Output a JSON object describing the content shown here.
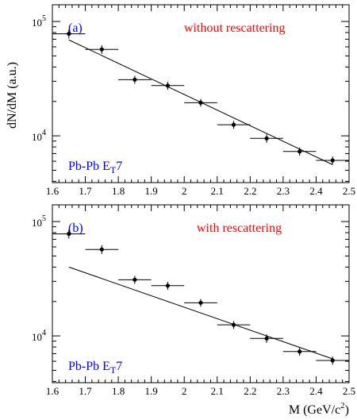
{
  "chart_data": [
    {
      "type": "scatter",
      "panel_label": "(a)",
      "annotation": "without rescattering",
      "system_label_main": "Pb-Pb E",
      "system_label_sub": "T",
      "system_label_tail": "7",
      "ylabel": "dN/dM (a.u.)",
      "xlabel": "",
      "xlim": [
        1.6,
        2.5
      ],
      "ylim": [
        3900,
        140000
      ],
      "yscale": "log",
      "x_ticks": [
        "1.6",
        "1.7",
        "1.8",
        "1.9",
        "2",
        "2.1",
        "2.2",
        "2.3",
        "2.4",
        "2.5"
      ],
      "y_tick_labels": [
        {
          "value": 10000,
          "base": "10",
          "exp": "4"
        },
        {
          "value": 100000,
          "base": "10",
          "exp": "5"
        }
      ],
      "points": [
        {
          "x": 1.65,
          "y": 78000,
          "xerr": 0.05,
          "yerr": 7000
        },
        {
          "x": 1.75,
          "y": 57000,
          "xerr": 0.05,
          "yerr": 5000
        },
        {
          "x": 1.85,
          "y": 31000,
          "xerr": 0.05,
          "yerr": 2500
        },
        {
          "x": 1.95,
          "y": 27500,
          "xerr": 0.05,
          "yerr": 2200
        },
        {
          "x": 2.05,
          "y": 19500,
          "xerr": 0.05,
          "yerr": 1500
        },
        {
          "x": 2.15,
          "y": 12500,
          "xerr": 0.05,
          "yerr": 1000
        },
        {
          "x": 2.25,
          "y": 9500,
          "xerr": 0.05,
          "yerr": 800
        },
        {
          "x": 2.35,
          "y": 7300,
          "xerr": 0.05,
          "yerr": 600
        },
        {
          "x": 2.45,
          "y": 6100,
          "xerr": 0.05,
          "yerr": 500
        }
      ],
      "fit": {
        "x": [
          1.65,
          2.45
        ],
        "y": [
          69000,
          5600
        ]
      },
      "colors": {
        "panel_label": "#0000ff",
        "annotation": "#ff0000",
        "system_label": "#0000ff",
        "data": "#000000"
      }
    },
    {
      "type": "scatter",
      "panel_label": "(b)",
      "annotation": "with rescattering",
      "system_label_main": "Pb-Pb E",
      "system_label_sub": "T",
      "system_label_tail": "7",
      "ylabel": "",
      "xlabel": "M (GeV/c",
      "xlabel_sup": "2",
      "xlabel_tail": ")",
      "xlim": [
        1.6,
        2.5
      ],
      "ylim": [
        3900,
        140000
      ],
      "yscale": "log",
      "x_ticks": [
        "1.6",
        "1.7",
        "1.8",
        "1.9",
        "2",
        "2.1",
        "2.2",
        "2.3",
        "2.4",
        "2.5"
      ],
      "y_tick_labels": [
        {
          "value": 10000,
          "base": "10",
          "exp": "4"
        },
        {
          "value": 100000,
          "base": "10",
          "exp": "5"
        }
      ],
      "points": [
        {
          "x": 1.65,
          "y": 78000,
          "xerr": 0.05,
          "yerr": 7000
        },
        {
          "x": 1.75,
          "y": 57000,
          "xerr": 0.05,
          "yerr": 5000
        },
        {
          "x": 1.85,
          "y": 31000,
          "xerr": 0.05,
          "yerr": 2500
        },
        {
          "x": 1.95,
          "y": 27500,
          "xerr": 0.05,
          "yerr": 2200
        },
        {
          "x": 2.05,
          "y": 19500,
          "xerr": 0.05,
          "yerr": 1500
        },
        {
          "x": 2.15,
          "y": 12500,
          "xerr": 0.05,
          "yerr": 1000
        },
        {
          "x": 2.25,
          "y": 9500,
          "xerr": 0.05,
          "yerr": 800
        },
        {
          "x": 2.35,
          "y": 7300,
          "xerr": 0.05,
          "yerr": 600
        },
        {
          "x": 2.45,
          "y": 6100,
          "xerr": 0.05,
          "yerr": 500
        }
      ],
      "fit": {
        "x": [
          1.65,
          2.45
        ],
        "y": [
          40000,
          6300
        ]
      },
      "colors": {
        "panel_label": "#0000ff",
        "annotation": "#ff0000",
        "system_label": "#0000ff",
        "data": "#000000"
      }
    }
  ]
}
